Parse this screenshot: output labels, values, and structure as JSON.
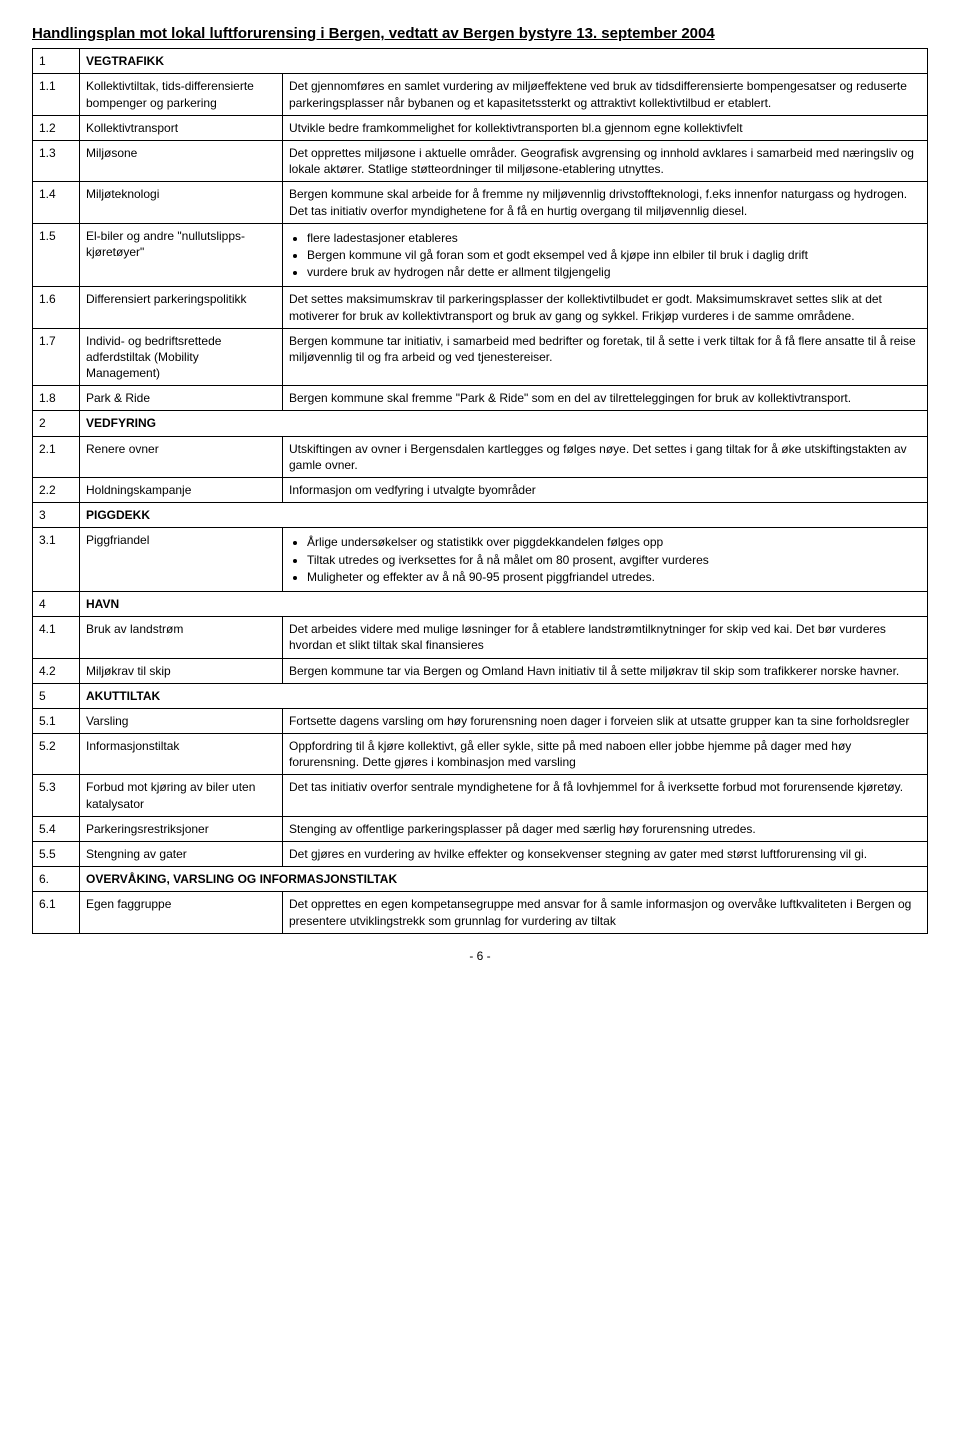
{
  "page_title": "Handlingsplan mot lokal luftforurensing i Bergen, vedtatt av Bergen bystyre 13. september 2004",
  "footer": "- 6 -",
  "sections": {
    "s1": {
      "num": "1",
      "label": "VEGTRAFIKK"
    },
    "s2": {
      "num": "2",
      "label": "VEDFYRING"
    },
    "s3": {
      "num": "3",
      "label": "PIGGDEKK"
    },
    "s4": {
      "num": "4",
      "label": "HAVN"
    },
    "s5": {
      "num": "5",
      "label": "AKUTTILTAK"
    },
    "s6": {
      "num": "6.",
      "label": "OVERVÅKING, VARSLING OG INFORMASJONSTILTAK"
    }
  },
  "rows": {
    "r1_1": {
      "num": "1.1",
      "name": "Kollektivtiltak, tids-differensierte bompenger og parkering",
      "desc": "Det gjennomføres en samlet vurdering av miljøeffektene ved bruk av tidsdifferensierte bompengesatser og reduserte parkeringsplasser når bybanen og et kapasitetssterkt og attraktivt kollektivtilbud er etablert."
    },
    "r1_2": {
      "num": "1.2",
      "name": "Kollektivtransport",
      "desc": "Utvikle bedre framkommelighet for kollektivtransporten bl.a gjennom egne kollektivfelt"
    },
    "r1_3": {
      "num": "1.3",
      "name": "Miljøsone",
      "desc": "Det opprettes miljøsone i aktuelle områder. Geografisk avgrensing og innhold avklares i samarbeid med næringsliv og lokale aktører. Statlige støtteordninger til miljøsone-etablering utnyttes."
    },
    "r1_4": {
      "num": "1.4",
      "name": "Miljøteknologi",
      "desc": "Bergen kommune skal arbeide for å fremme ny miljøvennlig drivstoffteknologi, f.eks innenfor naturgass og hydrogen. Det tas initiativ overfor myndighetene for å få en hurtig overgang til miljøvennlig diesel."
    },
    "r1_5": {
      "num": "1.5",
      "name": "El-biler og andre \"nullutslipps-kjøretøyer\"",
      "bullets": [
        "flere ladestasjoner etableres",
        "Bergen kommune vil gå foran som et godt eksempel ved å kjøpe inn elbiler til bruk i daglig drift",
        "vurdere bruk av hydrogen når dette er allment tilgjengelig"
      ]
    },
    "r1_6": {
      "num": "1.6",
      "name": "Differensiert parkeringspolitikk",
      "desc": "Det settes maksimumskrav til parkeringsplasser der kollektivtilbudet er godt. Maksimumskravet settes slik at det motiverer for bruk av kollektivtransport og bruk av gang og sykkel. Frikjøp vurderes i de samme områdene."
    },
    "r1_7": {
      "num": "1.7",
      "name": "Individ- og bedriftsrettede adferdstiltak (Mobility Management)",
      "desc": "Bergen kommune tar initiativ, i samarbeid med bedrifter og foretak, til å sette i verk tiltak for å få flere ansatte til å reise miljøvennlig til og fra arbeid og ved tjenestereiser."
    },
    "r1_8": {
      "num": "1.8",
      "name": "Park & Ride",
      "desc": "Bergen kommune skal fremme \"Park & Ride\" som en del av tilretteleggingen for bruk av kollektivtransport."
    },
    "r2_1": {
      "num": "2.1",
      "name": "Renere ovner",
      "desc": "Utskiftingen av ovner i Bergensdalen kartlegges og følges nøye. Det settes i gang tiltak for å øke utskiftingstakten av gamle ovner."
    },
    "r2_2": {
      "num": "2.2",
      "name": "Holdningskampanje",
      "desc": "Informasjon om vedfyring i utvalgte byområder"
    },
    "r3_1": {
      "num": "3.1",
      "name": "Piggfriandel",
      "bullets": [
        "Årlige undersøkelser og statistikk over piggdekkandelen følges opp",
        "Tiltak utredes og iverksettes for å nå målet om 80 prosent, avgifter vurderes",
        "Muligheter og effekter av å nå 90-95 prosent piggfriandel utredes."
      ]
    },
    "r4_1": {
      "num": "4.1",
      "name": "Bruk av landstrøm",
      "desc": "Det arbeides videre med mulige løsninger for å etablere landstrømtilknytninger for skip ved kai. Det bør vurderes hvordan et slikt tiltak skal finansieres"
    },
    "r4_2": {
      "num": "4.2",
      "name": "Miljøkrav til skip",
      "desc": "Bergen kommune tar via Bergen og Omland Havn initiativ til å sette miljøkrav til skip som trafikkerer norske havner."
    },
    "r5_1": {
      "num": "5.1",
      "name": "Varsling",
      "desc": "Fortsette dagens varsling om høy forurensning noen dager i forveien slik at utsatte grupper kan ta sine forholdsregler"
    },
    "r5_2": {
      "num": "5.2",
      "name": "Informasjonstiltak",
      "desc": "Oppfordring til å kjøre kollektivt, gå eller sykle, sitte på med naboen eller jobbe hjemme på dager med høy forurensning. Dette gjøres i kombinasjon med varsling"
    },
    "r5_3": {
      "num": "5.3",
      "name": "Forbud mot kjøring av biler uten katalysator",
      "desc": "Det tas initiativ overfor sentrale myndighetene for å få lovhjemmel for å iverksette forbud mot forurensende kjøretøy."
    },
    "r5_4": {
      "num": "5.4",
      "name": "Parkeringsrestriksjoner",
      "desc": "Stenging av offentlige parkeringsplasser på dager med særlig høy forurensning utredes."
    },
    "r5_5": {
      "num": "5.5",
      "name": "Stengning av gater",
      "desc": "Det gjøres en vurdering av hvilke effekter og konsekvenser stegning av gater med størst luftforurensing vil gi."
    },
    "r6_1": {
      "num": "6.1",
      "name": "Egen faggruppe",
      "desc": "Det opprettes en egen kompetansegruppe med ansvar for å samle informasjon og overvåke luftkvaliteten i Bergen og presentere utviklingstrekk som grunnlag for vurdering av tiltak"
    }
  }
}
